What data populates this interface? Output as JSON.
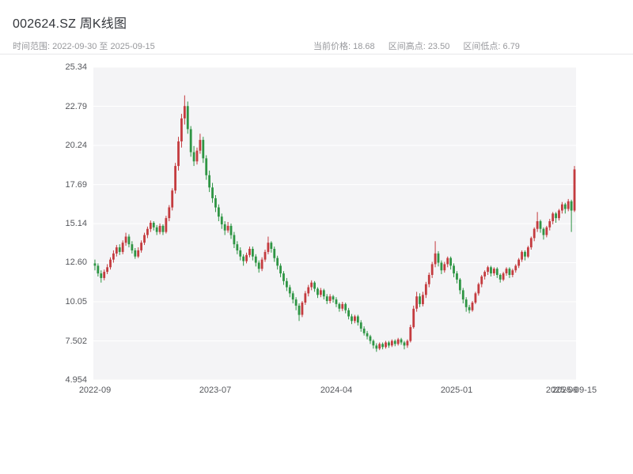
{
  "header": {
    "title": "002624.SZ 周K线图",
    "time_range": "时间范围: 2022-09-30 至 2025-09-15",
    "stats": {
      "current": "当前价格: 18.68",
      "high": "区间高点: 23.50",
      "low": "区间低点: 6.79"
    }
  },
  "chart_data": {
    "type": "candlestick",
    "symbol": "002624.SZ",
    "interval": "weekly",
    "title": "002624.SZ 周K线图",
    "current_price": 18.68,
    "range_high": 23.5,
    "range_low": 6.79,
    "y_min": 4.954,
    "y_max": 25.34,
    "y_ticks": [
      "25.34",
      "22.79",
      "20.24",
      "17.69",
      "15.14",
      "12.60",
      "10.05",
      "7.502",
      "4.954"
    ],
    "x_ticks": [
      {
        "index": 0,
        "label": "2022-09"
      },
      {
        "index": 39,
        "label": "2023-07"
      },
      {
        "index": 78,
        "label": "2024-04"
      },
      {
        "index": 117,
        "label": "2025-01"
      },
      {
        "index": 151,
        "label": "2025-09"
      },
      {
        "index": 155,
        "label": "2025-09-15"
      }
    ],
    "up_color": "#c43b3f",
    "down_color": "#2e9544",
    "grid_color": "#ffffff",
    "plot_bg": "#f4f4f6",
    "candles": [
      [
        12.55,
        12.8,
        12.1,
        12.4
      ],
      [
        12.4,
        12.55,
        11.7,
        11.9
      ],
      [
        11.9,
        12.1,
        11.3,
        11.6
      ],
      [
        11.6,
        12.15,
        11.45,
        12.0
      ],
      [
        12.0,
        12.5,
        11.85,
        12.3
      ],
      [
        12.3,
        12.95,
        12.15,
        12.8
      ],
      [
        12.8,
        13.4,
        12.6,
        13.2
      ],
      [
        13.2,
        13.75,
        13.0,
        13.6
      ],
      [
        13.6,
        13.8,
        13.1,
        13.3
      ],
      [
        13.3,
        14.05,
        13.15,
        13.9
      ],
      [
        13.9,
        14.55,
        13.7,
        14.3
      ],
      [
        14.3,
        14.45,
        13.6,
        13.8
      ],
      [
        13.8,
        14.0,
        13.2,
        13.4
      ],
      [
        13.4,
        13.55,
        12.85,
        13.0
      ],
      [
        13.0,
        13.6,
        12.9,
        13.4
      ],
      [
        13.4,
        14.05,
        13.25,
        13.9
      ],
      [
        13.9,
        14.55,
        13.75,
        14.4
      ],
      [
        14.4,
        14.95,
        14.2,
        14.8
      ],
      [
        14.8,
        15.35,
        14.6,
        15.2
      ],
      [
        15.2,
        15.3,
        14.7,
        14.9
      ],
      [
        14.9,
        15.05,
        14.4,
        14.6
      ],
      [
        14.6,
        15.15,
        14.45,
        15.0
      ],
      [
        15.0,
        15.1,
        14.4,
        14.6
      ],
      [
        14.6,
        15.65,
        14.5,
        15.5
      ],
      [
        15.5,
        16.35,
        15.3,
        16.2
      ],
      [
        16.2,
        17.45,
        16.0,
        17.3
      ],
      [
        17.3,
        19.1,
        17.1,
        18.9
      ],
      [
        18.9,
        20.8,
        18.6,
        20.5
      ],
      [
        20.5,
        22.3,
        20.1,
        22.0
      ],
      [
        22.0,
        23.5,
        21.6,
        22.8
      ],
      [
        22.8,
        23.1,
        21.0,
        21.3
      ],
      [
        21.3,
        21.5,
        19.5,
        19.8
      ],
      [
        19.8,
        20.2,
        18.9,
        19.2
      ],
      [
        19.2,
        20.1,
        19.0,
        19.9
      ],
      [
        19.9,
        21.0,
        19.7,
        20.6
      ],
      [
        20.6,
        20.8,
        19.1,
        19.4
      ],
      [
        19.4,
        19.6,
        18.0,
        18.3
      ],
      [
        18.3,
        18.6,
        17.2,
        17.5
      ],
      [
        17.5,
        17.8,
        16.5,
        16.8
      ],
      [
        16.8,
        17.0,
        15.9,
        16.2
      ],
      [
        16.2,
        16.4,
        15.3,
        15.6
      ],
      [
        15.6,
        15.8,
        14.8,
        15.1
      ],
      [
        15.1,
        15.3,
        14.4,
        14.7
      ],
      [
        14.7,
        15.25,
        14.55,
        15.0
      ],
      [
        15.0,
        15.15,
        14.15,
        14.4
      ],
      [
        14.4,
        14.6,
        13.55,
        13.8
      ],
      [
        13.8,
        14.0,
        13.15,
        13.4
      ],
      [
        13.4,
        13.6,
        12.75,
        13.0
      ],
      [
        13.0,
        13.15,
        12.4,
        12.7
      ],
      [
        12.7,
        13.25,
        12.55,
        13.1
      ],
      [
        13.1,
        13.65,
        12.95,
        13.5
      ],
      [
        13.5,
        13.65,
        12.75,
        13.0
      ],
      [
        13.0,
        13.15,
        12.35,
        12.6
      ],
      [
        12.6,
        12.75,
        11.95,
        12.2
      ],
      [
        12.2,
        12.95,
        12.05,
        12.8
      ],
      [
        12.8,
        13.45,
        12.65,
        13.3
      ],
      [
        13.3,
        14.3,
        13.15,
        13.9
      ],
      [
        13.9,
        14.0,
        13.25,
        13.5
      ],
      [
        13.5,
        13.65,
        12.65,
        12.9
      ],
      [
        12.9,
        13.05,
        12.15,
        12.4
      ],
      [
        12.4,
        12.55,
        11.65,
        11.9
      ],
      [
        11.9,
        12.05,
        11.15,
        11.4
      ],
      [
        11.4,
        11.6,
        10.75,
        11.0
      ],
      [
        11.0,
        11.15,
        10.35,
        10.6
      ],
      [
        10.6,
        10.75,
        9.95,
        10.2
      ],
      [
        10.2,
        10.35,
        9.5,
        9.8
      ],
      [
        9.8,
        9.95,
        8.8,
        9.2
      ],
      [
        9.2,
        10.1,
        9.05,
        10.0
      ],
      [
        10.0,
        10.75,
        9.85,
        10.6
      ],
      [
        10.6,
        11.15,
        10.4,
        11.0
      ],
      [
        11.0,
        11.45,
        10.8,
        11.3
      ],
      [
        11.3,
        11.4,
        10.7,
        10.9
      ],
      [
        10.9,
        11.0,
        10.3,
        10.5
      ],
      [
        10.5,
        10.95,
        10.35,
        10.8
      ],
      [
        10.8,
        10.9,
        10.2,
        10.4
      ],
      [
        10.4,
        10.55,
        9.9,
        10.1
      ],
      [
        10.1,
        10.55,
        9.95,
        10.4
      ],
      [
        10.4,
        10.5,
        10.0,
        10.2
      ],
      [
        10.2,
        10.35,
        9.7,
        9.9
      ],
      [
        9.9,
        10.0,
        9.4,
        9.6
      ],
      [
        9.6,
        10.05,
        9.45,
        9.9
      ],
      [
        9.9,
        10.0,
        9.3,
        9.5
      ],
      [
        9.5,
        9.65,
        8.9,
        9.1
      ],
      [
        9.1,
        9.25,
        8.6,
        8.8
      ],
      [
        8.8,
        9.2,
        8.65,
        9.1
      ],
      [
        9.1,
        9.2,
        8.5,
        8.7
      ],
      [
        8.7,
        8.85,
        8.1,
        8.3
      ],
      [
        8.3,
        8.45,
        7.85,
        8.0
      ],
      [
        8.0,
        8.15,
        7.6,
        7.8
      ],
      [
        7.8,
        7.9,
        7.3,
        7.5
      ],
      [
        7.5,
        7.6,
        7.0,
        7.2
      ],
      [
        7.2,
        7.35,
        6.79,
        7.0
      ],
      [
        7.0,
        7.4,
        6.9,
        7.3
      ],
      [
        7.3,
        7.4,
        6.95,
        7.1
      ],
      [
        7.1,
        7.5,
        7.0,
        7.4
      ],
      [
        7.4,
        7.5,
        7.05,
        7.2
      ],
      [
        7.2,
        7.6,
        7.1,
        7.5
      ],
      [
        7.5,
        7.6,
        7.15,
        7.3
      ],
      [
        7.3,
        7.7,
        7.2,
        7.6
      ],
      [
        7.6,
        7.7,
        7.25,
        7.4
      ],
      [
        7.4,
        7.5,
        6.95,
        7.2
      ],
      [
        7.2,
        7.6,
        7.05,
        7.5
      ],
      [
        7.5,
        8.55,
        7.4,
        8.4
      ],
      [
        8.4,
        9.8,
        8.3,
        9.6
      ],
      [
        9.6,
        10.7,
        9.4,
        10.4
      ],
      [
        10.4,
        10.6,
        9.7,
        9.9
      ],
      [
        9.9,
        10.7,
        9.75,
        10.5
      ],
      [
        10.5,
        11.35,
        10.3,
        11.2
      ],
      [
        11.2,
        11.95,
        11.0,
        11.8
      ],
      [
        11.8,
        12.65,
        11.6,
        12.5
      ],
      [
        12.5,
        14.0,
        12.3,
        13.2
      ],
      [
        13.2,
        13.35,
        12.35,
        12.6
      ],
      [
        12.6,
        12.75,
        11.85,
        12.1
      ],
      [
        12.1,
        12.65,
        11.95,
        12.5
      ],
      [
        12.5,
        13.0,
        12.3,
        12.9
      ],
      [
        12.9,
        13.0,
        12.15,
        12.4
      ],
      [
        12.4,
        12.55,
        11.65,
        11.9
      ],
      [
        11.9,
        12.05,
        11.25,
        11.5
      ],
      [
        11.5,
        11.6,
        10.55,
        10.8
      ],
      [
        10.8,
        10.95,
        9.95,
        10.2
      ],
      [
        10.2,
        10.35,
        9.4,
        9.7
      ],
      [
        9.7,
        9.85,
        9.3,
        9.5
      ],
      [
        9.5,
        10.1,
        9.4,
        10.0
      ],
      [
        10.0,
        10.7,
        9.9,
        10.6
      ],
      [
        10.6,
        11.3,
        10.45,
        11.2
      ],
      [
        11.2,
        11.8,
        11.0,
        11.7
      ],
      [
        11.7,
        12.1,
        11.5,
        12.0
      ],
      [
        12.0,
        12.4,
        11.8,
        12.3
      ],
      [
        12.3,
        12.4,
        11.7,
        11.9
      ],
      [
        11.9,
        12.3,
        11.75,
        12.2
      ],
      [
        12.2,
        12.3,
        11.6,
        11.8
      ],
      [
        11.8,
        11.9,
        11.3,
        11.5
      ],
      [
        11.5,
        12.0,
        11.4,
        11.9
      ],
      [
        11.9,
        12.3,
        11.75,
        12.2
      ],
      [
        12.2,
        12.3,
        11.6,
        11.8
      ],
      [
        11.8,
        12.2,
        11.65,
        12.1
      ],
      [
        12.1,
        12.5,
        11.95,
        12.4
      ],
      [
        12.4,
        12.9,
        12.25,
        12.8
      ],
      [
        12.8,
        13.4,
        12.65,
        13.3
      ],
      [
        13.3,
        13.4,
        12.75,
        13.0
      ],
      [
        13.0,
        13.7,
        12.9,
        13.6
      ],
      [
        13.6,
        14.3,
        13.45,
        14.2
      ],
      [
        14.2,
        14.9,
        14.0,
        14.8
      ],
      [
        14.8,
        15.9,
        14.6,
        15.3
      ],
      [
        15.3,
        15.4,
        14.55,
        14.8
      ],
      [
        14.8,
        14.9,
        14.1,
        14.4
      ],
      [
        14.4,
        15.0,
        14.25,
        14.9
      ],
      [
        14.9,
        15.45,
        14.7,
        15.3
      ],
      [
        15.3,
        15.9,
        15.1,
        15.8
      ],
      [
        15.8,
        15.9,
        15.2,
        15.5
      ],
      [
        15.5,
        16.1,
        15.35,
        16.0
      ],
      [
        16.0,
        16.55,
        15.8,
        16.4
      ],
      [
        16.4,
        16.5,
        15.8,
        16.1
      ],
      [
        16.1,
        16.75,
        15.95,
        16.6
      ],
      [
        16.6,
        16.7,
        14.6,
        16.0
      ],
      [
        16.0,
        18.9,
        15.9,
        18.68
      ]
    ]
  }
}
